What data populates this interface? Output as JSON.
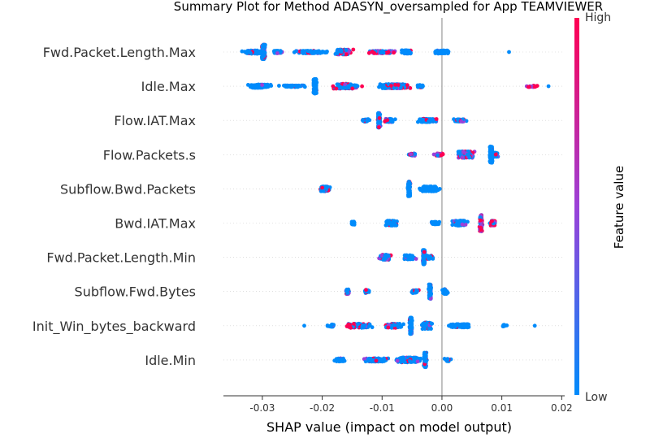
{
  "chart_data": {
    "type": "scatter",
    "title": "Summary Plot for Method ADASYN_oversampled for App TEAMVIEWER",
    "xlabel": "SHAP value (impact on model output)",
    "xlim": [
      -0.0365,
      0.0205
    ],
    "xticks": [
      "-0.03",
      "-0.02",
      "-0.01",
      "0.00",
      "0.01",
      "0.02"
    ],
    "xtick_values": [
      -0.03,
      -0.02,
      -0.01,
      0.0,
      0.01,
      0.02
    ],
    "grid": false,
    "colorbar": {
      "label": "Feature value",
      "high": "High",
      "low": "Low"
    },
    "colors": {
      "low": "#008bfb",
      "high": "#ff0052",
      "mid": "#9b41d8",
      "zero_line": "#999999"
    },
    "features": [
      {
        "name": "Fwd.Packet.Length.Max",
        "clusters": [
          {
            "x": -0.0298,
            "spread": 0.0004,
            "height": 18,
            "n": 180,
            "high": 0.35
          },
          {
            "x": -0.0315,
            "spread": 0.0025,
            "height": 4,
            "n": 90,
            "high": 0.2
          },
          {
            "x": -0.0275,
            "spread": 0.0012,
            "height": 3,
            "n": 40,
            "high": 0.1
          },
          {
            "x": -0.022,
            "spread": 0.004,
            "height": 3,
            "n": 120,
            "high": 0.1
          },
          {
            "x": -0.0165,
            "spread": 0.002,
            "height": 6,
            "n": 110,
            "high": 0.35
          },
          {
            "x": -0.01,
            "spread": 0.003,
            "height": 3,
            "n": 90,
            "high": 0.5
          },
          {
            "x": -0.006,
            "spread": 0.0012,
            "height": 4,
            "n": 90,
            "high": 0.1
          },
          {
            "x": 0.0,
            "spread": 0.002,
            "height": 4,
            "n": 90,
            "high": 0.05
          },
          {
            "x": 0.0112,
            "spread": 0.0,
            "height": 1,
            "n": 1,
            "high": 0.0
          }
        ]
      },
      {
        "name": "Idle.Max",
        "clusters": [
          {
            "x": -0.0305,
            "spread": 0.0025,
            "height": 4,
            "n": 120,
            "high": 0.02
          },
          {
            "x": -0.025,
            "spread": 0.003,
            "height": 2,
            "n": 60,
            "high": 0.02
          },
          {
            "x": -0.0212,
            "spread": 0.0004,
            "height": 18,
            "n": 160,
            "high": 0.05
          },
          {
            "x": -0.016,
            "spread": 0.003,
            "height": 6,
            "n": 140,
            "high": 0.4
          },
          {
            "x": -0.008,
            "spread": 0.004,
            "height": 5,
            "n": 160,
            "high": 0.3
          },
          {
            "x": -0.0035,
            "spread": 0.001,
            "height": 3,
            "n": 30,
            "high": 0.05
          },
          {
            "x": 0.015,
            "spread": 0.002,
            "height": 2,
            "n": 18,
            "high": 0.8
          },
          {
            "x": 0.0178,
            "spread": 0.0,
            "height": 1,
            "n": 1,
            "high": 0.8
          }
        ]
      },
      {
        "name": "Flow.IAT.Max",
        "clusters": [
          {
            "x": -0.0105,
            "spread": 0.0003,
            "height": 18,
            "n": 160,
            "high": 0.25
          },
          {
            "x": -0.0128,
            "spread": 0.001,
            "height": 3,
            "n": 30,
            "high": 0.2
          },
          {
            "x": -0.0088,
            "spread": 0.0012,
            "height": 4,
            "n": 40,
            "high": 0.2
          },
          {
            "x": -0.0025,
            "spread": 0.0025,
            "height": 4,
            "n": 110,
            "high": 0.1
          },
          {
            "x": 0.003,
            "spread": 0.0018,
            "height": 3,
            "n": 40,
            "high": 0.2
          }
        ]
      },
      {
        "name": "Flow.Packets.s",
        "clusters": [
          {
            "x": -0.005,
            "spread": 0.0008,
            "height": 3,
            "n": 30,
            "high": 0.6
          },
          {
            "x": -0.0005,
            "spread": 0.0015,
            "height": 3,
            "n": 30,
            "high": 0.9
          },
          {
            "x": 0.004,
            "spread": 0.002,
            "height": 8,
            "n": 140,
            "high": 0.4
          },
          {
            "x": 0.0082,
            "spread": 0.0003,
            "height": 20,
            "n": 160,
            "high": 0.05
          },
          {
            "x": 0.009,
            "spread": 0.0008,
            "height": 5,
            "n": 40,
            "high": 0.1
          }
        ]
      },
      {
        "name": "Subflow.Bwd.Packets",
        "clusters": [
          {
            "x": -0.0195,
            "spread": 0.0012,
            "height": 6,
            "n": 80,
            "high": 0.3
          },
          {
            "x": -0.0055,
            "spread": 0.0003,
            "height": 18,
            "n": 150,
            "high": 0.1
          },
          {
            "x": -0.002,
            "spread": 0.0025,
            "height": 6,
            "n": 130,
            "high": 0.05
          }
        ]
      },
      {
        "name": "Bwd.IAT.Max",
        "clusters": [
          {
            "x": -0.0148,
            "spread": 0.0005,
            "height": 4,
            "n": 20,
            "high": 0.0
          },
          {
            "x": -0.0085,
            "spread": 0.0015,
            "height": 6,
            "n": 70,
            "high": 0.05
          },
          {
            "x": -0.001,
            "spread": 0.0012,
            "height": 3,
            "n": 40,
            "high": 0.1
          },
          {
            "x": 0.003,
            "spread": 0.002,
            "height": 6,
            "n": 110,
            "high": 0.25
          },
          {
            "x": 0.0065,
            "spread": 0.0003,
            "height": 20,
            "n": 160,
            "high": 0.7
          },
          {
            "x": 0.0085,
            "spread": 0.0008,
            "height": 6,
            "n": 40,
            "high": 0.6
          }
        ]
      },
      {
        "name": "Fwd.Packet.Length.Min",
        "clusters": [
          {
            "x": -0.0095,
            "spread": 0.0015,
            "height": 6,
            "n": 80,
            "high": 0.35
          },
          {
            "x": -0.0055,
            "spread": 0.0015,
            "height": 5,
            "n": 70,
            "high": 0.3
          },
          {
            "x": -0.003,
            "spread": 0.0003,
            "height": 18,
            "n": 150,
            "high": 0.1
          },
          {
            "x": -0.002,
            "spread": 0.001,
            "height": 4,
            "n": 30,
            "high": 0.1
          }
        ]
      },
      {
        "name": "Subflow.Fwd.Bytes",
        "clusters": [
          {
            "x": -0.0158,
            "spread": 0.0004,
            "height": 6,
            "n": 40,
            "high": 0.5
          },
          {
            "x": -0.0125,
            "spread": 0.0008,
            "height": 4,
            "n": 25,
            "high": 0.2
          },
          {
            "x": -0.0045,
            "spread": 0.001,
            "height": 4,
            "n": 40,
            "high": 0.05
          },
          {
            "x": -0.002,
            "spread": 0.0003,
            "height": 18,
            "n": 140,
            "high": 0.05
          },
          {
            "x": 0.0005,
            "spread": 0.0008,
            "height": 6,
            "n": 40,
            "high": 0.05
          }
        ]
      },
      {
        "name": "Init_Win_bytes_backward",
        "clusters": [
          {
            "x": -0.023,
            "spread": 0.0,
            "height": 1,
            "n": 1,
            "high": 0.0
          },
          {
            "x": -0.0185,
            "spread": 0.001,
            "height": 3,
            "n": 20,
            "high": 0.05
          },
          {
            "x": -0.014,
            "spread": 0.003,
            "height": 5,
            "n": 120,
            "high": 0.5
          },
          {
            "x": -0.008,
            "spread": 0.002,
            "height": 5,
            "n": 80,
            "high": 0.3
          },
          {
            "x": -0.0052,
            "spread": 0.0003,
            "height": 20,
            "n": 170,
            "high": 0.15
          },
          {
            "x": -0.0025,
            "spread": 0.0012,
            "height": 8,
            "n": 80,
            "high": 0.2
          },
          {
            "x": 0.003,
            "spread": 0.0025,
            "height": 4,
            "n": 90,
            "high": 0.02
          },
          {
            "x": 0.0105,
            "spread": 0.001,
            "height": 2,
            "n": 12,
            "high": 0.0
          },
          {
            "x": 0.0155,
            "spread": 0.0,
            "height": 1,
            "n": 1,
            "high": 0.0
          }
        ]
      },
      {
        "name": "Idle.Min",
        "clusters": [
          {
            "x": -0.017,
            "spread": 0.0015,
            "height": 4,
            "n": 50,
            "high": 0.1
          },
          {
            "x": -0.011,
            "spread": 0.0025,
            "height": 4,
            "n": 90,
            "high": 0.15
          },
          {
            "x": -0.0055,
            "spread": 0.003,
            "height": 6,
            "n": 140,
            "high": 0.15
          },
          {
            "x": -0.0028,
            "spread": 0.0003,
            "height": 18,
            "n": 140,
            "high": 0.1
          },
          {
            "x": 0.001,
            "spread": 0.0008,
            "height": 3,
            "n": 20,
            "high": 0.05
          }
        ]
      }
    ]
  }
}
